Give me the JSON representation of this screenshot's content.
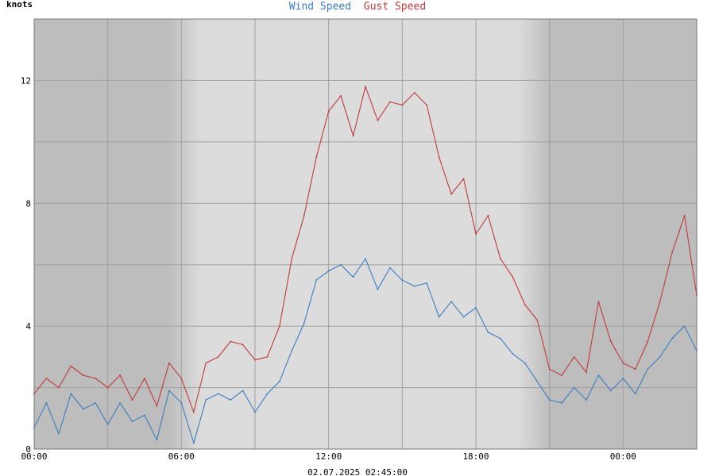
{
  "chart_data": {
    "type": "line",
    "title_parts": [
      "Wind Speed",
      "Gust Speed"
    ],
    "ylabel": "knots",
    "xlabel": "02.07.2025 02:45:00",
    "ylim": [
      0,
      14
    ],
    "xlim": [
      0,
      27
    ],
    "y_ticks": [
      0,
      4,
      8,
      12
    ],
    "y_tick_labels": [
      "0",
      "4",
      "8",
      "12"
    ],
    "x_ticks": [
      0,
      6,
      12,
      18,
      24
    ],
    "x_tick_labels": [
      "00:00",
      "06:00",
      "12:00",
      "18:00",
      "00:00"
    ],
    "grid": true,
    "night_bands": [
      [
        0,
        5.5
      ],
      [
        21,
        27
      ]
    ],
    "colors": {
      "wind": "#3a7ebf",
      "gust": "#c03a3a"
    },
    "series": [
      {
        "name": "Wind Speed",
        "x": [
          0,
          0.5,
          1,
          1.5,
          2,
          2.5,
          3,
          3.5,
          4,
          4.5,
          5,
          5.5,
          6,
          6.5,
          7,
          7.5,
          8,
          8.5,
          9,
          9.5,
          10,
          10.5,
          11,
          11.5,
          12,
          12.5,
          13,
          13.5,
          14,
          14.5,
          15,
          15.5,
          16,
          16.5,
          17,
          17.5,
          18,
          18.5,
          19,
          19.5,
          20,
          20.5,
          21,
          21.5,
          22,
          22.5,
          23,
          23.5,
          24,
          24.5,
          25,
          25.5,
          26,
          26.5,
          27
        ],
        "values": [
          0.7,
          1.5,
          0.5,
          1.8,
          1.3,
          1.5,
          0.8,
          1.5,
          0.9,
          1.1,
          0.3,
          1.9,
          1.5,
          0.2,
          1.6,
          1.8,
          1.6,
          1.9,
          1.2,
          1.8,
          2.2,
          3.2,
          4.1,
          5.5,
          5.8,
          6.0,
          5.6,
          6.2,
          5.2,
          5.9,
          5.5,
          5.3,
          5.4,
          4.3,
          4.8,
          4.3,
          4.6,
          3.8,
          3.6,
          3.1,
          2.8,
          2.2,
          1.6,
          1.5,
          2.0,
          1.6,
          2.4,
          1.9,
          2.3,
          1.8,
          2.6,
          3.0,
          3.6,
          4.0,
          3.2
        ]
      },
      {
        "name": "Gust Speed",
        "x": [
          0,
          0.5,
          1,
          1.5,
          2,
          2.5,
          3,
          3.5,
          4,
          4.5,
          5,
          5.5,
          6,
          6.5,
          7,
          7.5,
          8,
          8.5,
          9,
          9.5,
          10,
          10.5,
          11,
          11.5,
          12,
          12.5,
          13,
          13.5,
          14,
          14.5,
          15,
          15.5,
          16,
          16.5,
          17,
          17.5,
          18,
          18.5,
          19,
          19.5,
          20,
          20.5,
          21,
          21.5,
          22,
          22.5,
          23,
          23.5,
          24,
          24.5,
          25,
          25.5,
          26,
          26.5,
          27
        ],
        "values": [
          1.8,
          2.3,
          2.0,
          2.7,
          2.4,
          2.3,
          2.0,
          2.4,
          1.6,
          2.3,
          1.4,
          2.8,
          2.3,
          1.2,
          2.8,
          3.0,
          3.5,
          3.4,
          2.9,
          3.0,
          4.0,
          6.2,
          7.6,
          9.5,
          11.0,
          11.5,
          10.2,
          11.8,
          10.7,
          11.3,
          11.2,
          11.6,
          11.2,
          9.5,
          8.3,
          8.8,
          7.0,
          7.6,
          6.2,
          5.6,
          4.7,
          4.2,
          2.6,
          2.4,
          3.0,
          2.5,
          4.8,
          3.5,
          2.8,
          2.6,
          3.5,
          4.8,
          6.4,
          7.6,
          5.0
        ]
      }
    ]
  }
}
